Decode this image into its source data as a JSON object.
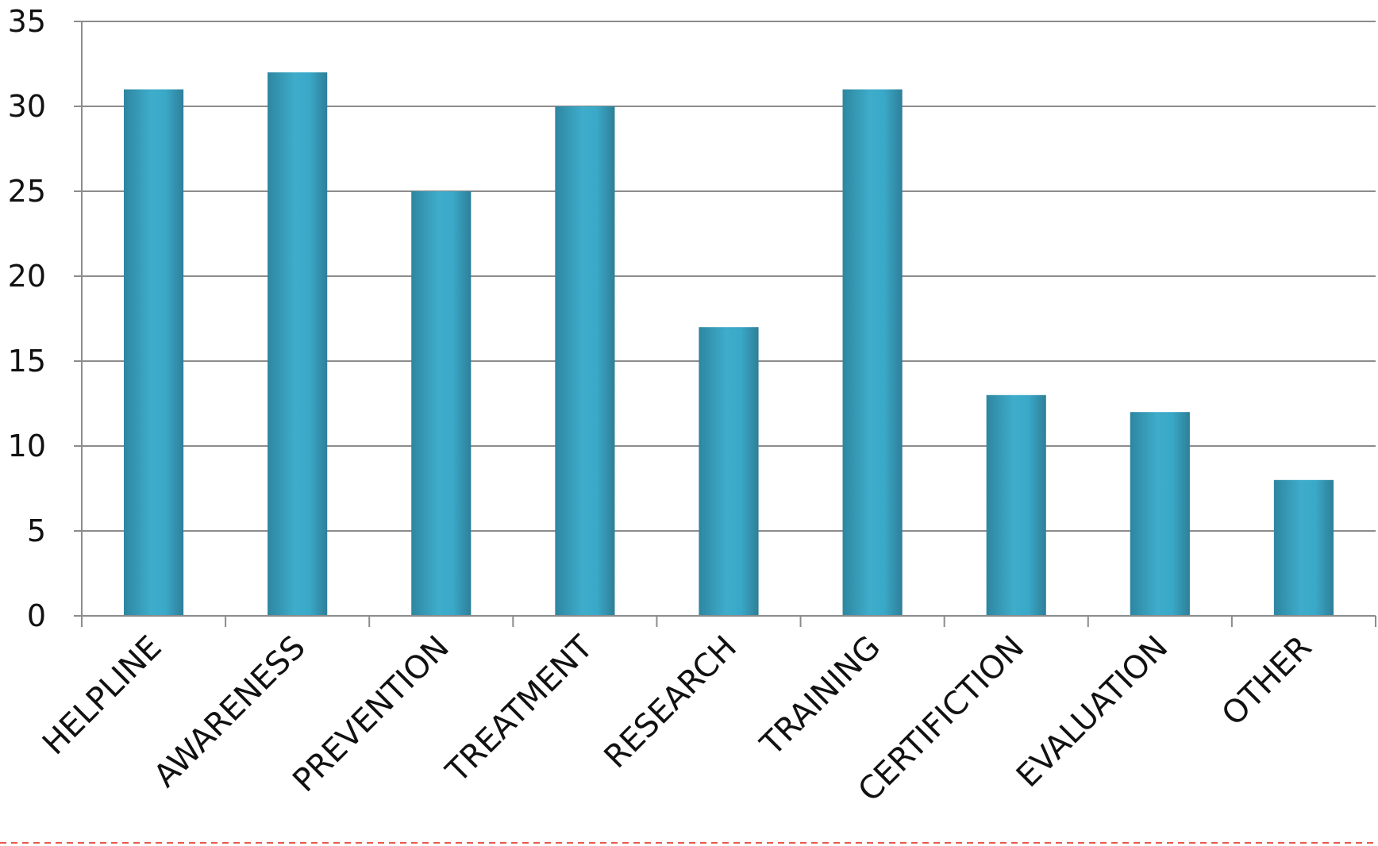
{
  "chart_data": {
    "type": "bar",
    "title": "",
    "xlabel": "",
    "ylabel": "",
    "categories": [
      "HELPLINE",
      "AWARENESS",
      "PREVENTION",
      "TREATMENT",
      "RESEARCH",
      "TRAINING",
      "CERTIFICTION",
      "EVALUATION",
      "OTHER"
    ],
    "values": [
      31,
      32,
      25,
      30,
      17,
      31,
      13,
      12,
      8
    ],
    "ylim": [
      0,
      35
    ],
    "yticks": [
      "0",
      "5",
      "10",
      "15",
      "20",
      "25",
      "30",
      "35"
    ],
    "grid": true,
    "legend": "none",
    "colors": {
      "bar_light": "#3aa8c8",
      "bar_dark": "#2e86a0",
      "grid": "#8c8c8c",
      "dashed_rule": "#e8574a"
    }
  }
}
